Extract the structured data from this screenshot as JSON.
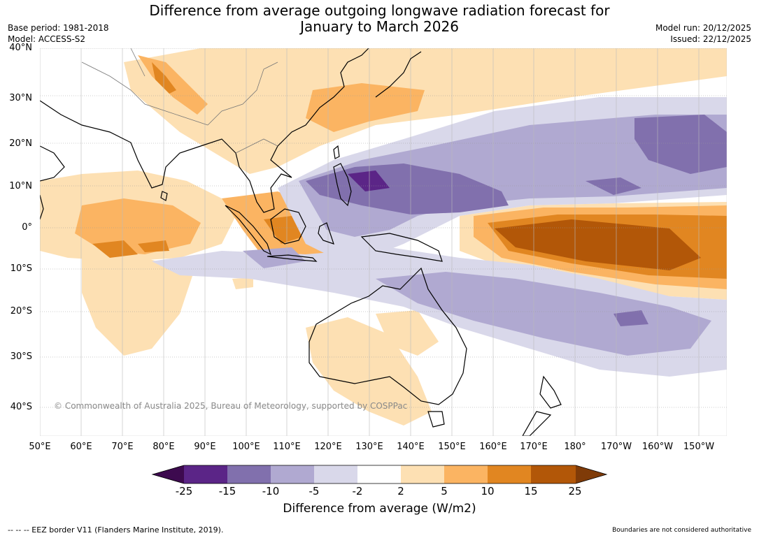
{
  "title_line1": "Difference from average outgoing longwave radiation forecast for",
  "title_line2": "January to March 2026",
  "meta": {
    "base_period": "Base period: 1981-2018",
    "model": "Model: ACCESS-S2",
    "model_run": "Model run: 20/12/2025",
    "issued": "Issued: 22/12/2025"
  },
  "lat_labels": [
    "40°N",
    "30°N",
    "20°N",
    "10°N",
    "0°",
    "10°S",
    "20°S",
    "30°S",
    "40°S"
  ],
  "lon_labels": [
    "50°E",
    "60°E",
    "70°E",
    "80°E",
    "90°E",
    "100°E",
    "110°E",
    "120°E",
    "130°E",
    "140°E",
    "150°E",
    "160°E",
    "170°E",
    "180°",
    "170°W",
    "160°W",
    "150°W"
  ],
  "copyright": "© Commonwealth of Australia 2025, Bureau of Meteorology, supported by COSPPac",
  "colorbar": {
    "title": "Difference from average (W/m2)",
    "ticks": [
      "-25",
      "-15",
      "-10",
      "-5",
      "-2",
      "2",
      "5",
      "10",
      "15",
      "25"
    ],
    "colors": [
      "#3d0a4f",
      "#5b2587",
      "#8170ad",
      "#b0a9d1",
      "#d9d8ea",
      "#ffffff",
      "#fde0b3",
      "#fbb462",
      "#e18621",
      "#b25708",
      "#7f3b08"
    ]
  },
  "footer_left": "--  --  -- EEZ border V11 (Flanders Marine Institute, 2019).",
  "footer_right": "Boundaries are not considered authoritative"
}
